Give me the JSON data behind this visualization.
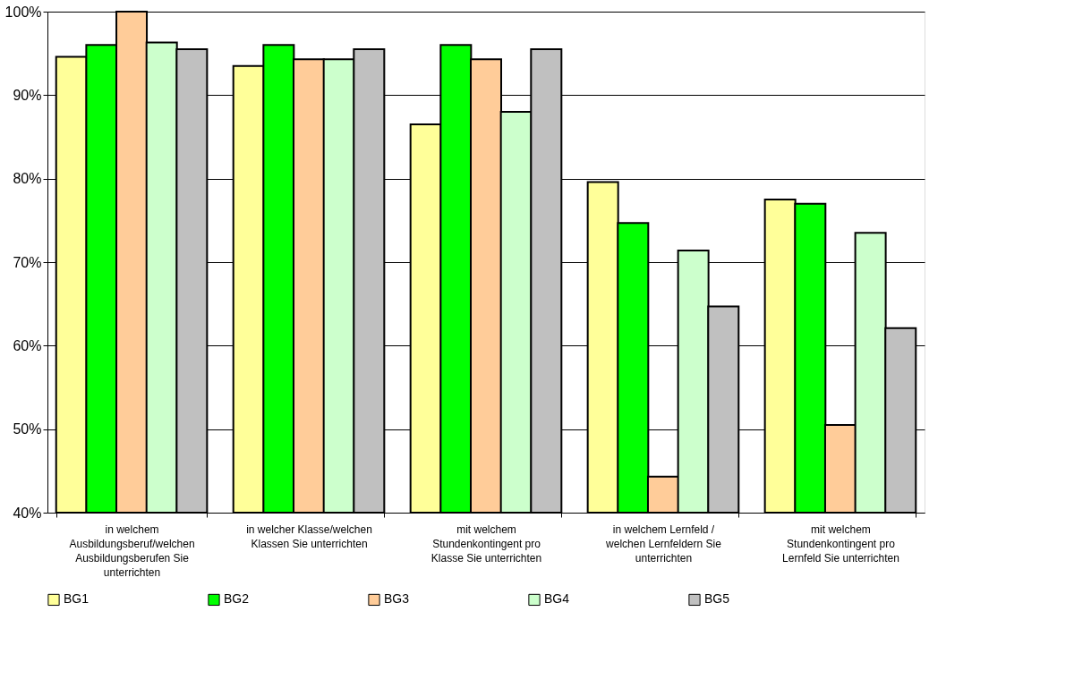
{
  "chart_data": {
    "type": "bar",
    "categories": [
      "in welchem Ausbildungsberuf/welchen Ausbildungsberufen Sie unterrichten",
      "in welcher Klasse/welchen Klassen Sie unterrichten",
      "mit welchem Stundenkontingent pro Klasse Sie unterrichten",
      "in welchem Lernfeld / welchen Lernfeldern Sie unterrichten",
      "mit welchem Stundenkontingent pro Lernfeld Sie unterrichten"
    ],
    "series": [
      {
        "name": "BG1",
        "color": "#ffff99",
        "values": [
          94.6,
          93.5,
          86.5,
          79.6,
          77.5
        ]
      },
      {
        "name": "BG2",
        "color": "#00ff00",
        "values": [
          96.0,
          96.0,
          96.0,
          74.7,
          77.0
        ]
      },
      {
        "name": "BG3",
        "color": "#ffcc99",
        "values": [
          100,
          94.3,
          94.3,
          44.3,
          50.5
        ]
      },
      {
        "name": "BG4",
        "color": "#ccffcc",
        "values": [
          96.3,
          94.3,
          88.0,
          71.4,
          73.5
        ]
      },
      {
        "name": "BG5",
        "color": "#c0c0c0",
        "values": [
          95.5,
          95.5,
          95.5,
          64.7,
          62.1
        ]
      }
    ],
    "ylim": [
      40,
      100
    ],
    "yticks": [
      {
        "value": 40,
        "label": "40%"
      },
      {
        "value": 50,
        "label": "50%"
      },
      {
        "value": 60,
        "label": "60%"
      },
      {
        "value": 70,
        "label": "70%"
      },
      {
        "value": 80,
        "label": "80%"
      },
      {
        "value": 90,
        "label": "90%"
      },
      {
        "value": 100,
        "label": "100%"
      }
    ],
    "grid": "y",
    "legend": "bottom"
  }
}
